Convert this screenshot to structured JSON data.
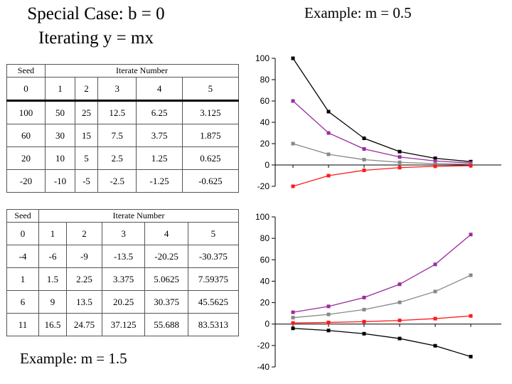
{
  "title": {
    "line1": "Special Case: b = 0",
    "line2": "Iterating y = mx"
  },
  "example_top": "Example: m = 0.5",
  "example_bottom": "Example: m = 1.5",
  "tables": [
    {
      "seed_header": "Seed",
      "iterate_header": "Iterate Number",
      "index_row": [
        "0",
        "1",
        "2",
        "3",
        "4",
        "5"
      ],
      "rows": [
        [
          "100",
          "50",
          "25",
          "12.5",
          "6.25",
          "3.125"
        ],
        [
          "60",
          "30",
          "15",
          "7.5",
          "3.75",
          "1.875"
        ],
        [
          "20",
          "10",
          "5",
          "2.5",
          "1.25",
          "0.625"
        ],
        [
          "-20",
          "-10",
          "-5",
          "-2.5",
          "-1.25",
          "-0.625"
        ]
      ]
    },
    {
      "seed_header": "Seed",
      "iterate_header": "Iterate Number",
      "index_row": [
        "0",
        "1",
        "2",
        "3",
        "4",
        "5"
      ],
      "rows": [
        [
          "-4",
          "-6",
          "-9",
          "-13.5",
          "-20.25",
          "-30.375"
        ],
        [
          "1",
          "1.5",
          "2.25",
          "3.375",
          "5.0625",
          "7.59375"
        ],
        [
          "6",
          "9",
          "13.5",
          "20.25",
          "30.375",
          "45.5625"
        ],
        [
          "11",
          "16.5",
          "24.75",
          "37.125",
          "55.688",
          "83.5313"
        ]
      ]
    }
  ],
  "chart_data": [
    {
      "type": "line",
      "x": [
        0,
        1,
        2,
        3,
        4,
        5
      ],
      "ylim": [
        -20,
        100
      ],
      "yticks": [
        -20,
        0,
        20,
        40,
        60,
        80,
        100
      ],
      "series": [
        {
          "values": [
            100,
            50,
            25,
            12.5,
            6.25,
            3.125
          ],
          "color": "#000000"
        },
        {
          "values": [
            60,
            30,
            15,
            7.5,
            3.75,
            1.875
          ],
          "color": "#9a2c9e"
        },
        {
          "values": [
            20,
            10,
            5,
            2.5,
            1.25,
            0.625
          ],
          "color": "#888888"
        },
        {
          "values": [
            -20,
            -10,
            -5,
            -2.5,
            -1.25,
            -0.625
          ],
          "color": "#ff1a1a"
        }
      ]
    },
    {
      "type": "line",
      "x": [
        0,
        1,
        2,
        3,
        4,
        5
      ],
      "ylim": [
        -40,
        100
      ],
      "yticks": [
        -40,
        -20,
        0,
        20,
        40,
        60,
        80,
        100
      ],
      "series": [
        {
          "values": [
            -4,
            -6,
            -9,
            -13.5,
            -20.25,
            -30.375
          ],
          "color": "#000000"
        },
        {
          "values": [
            1,
            1.5,
            2.25,
            3.375,
            5.0625,
            7.59375
          ],
          "color": "#ff1a1a"
        },
        {
          "values": [
            6,
            9,
            13.5,
            20.25,
            30.375,
            45.5625
          ],
          "color": "#888888"
        },
        {
          "values": [
            11,
            16.5,
            24.75,
            37.125,
            55.688,
            83.5313
          ],
          "color": "#9a2c9e"
        }
      ]
    }
  ]
}
